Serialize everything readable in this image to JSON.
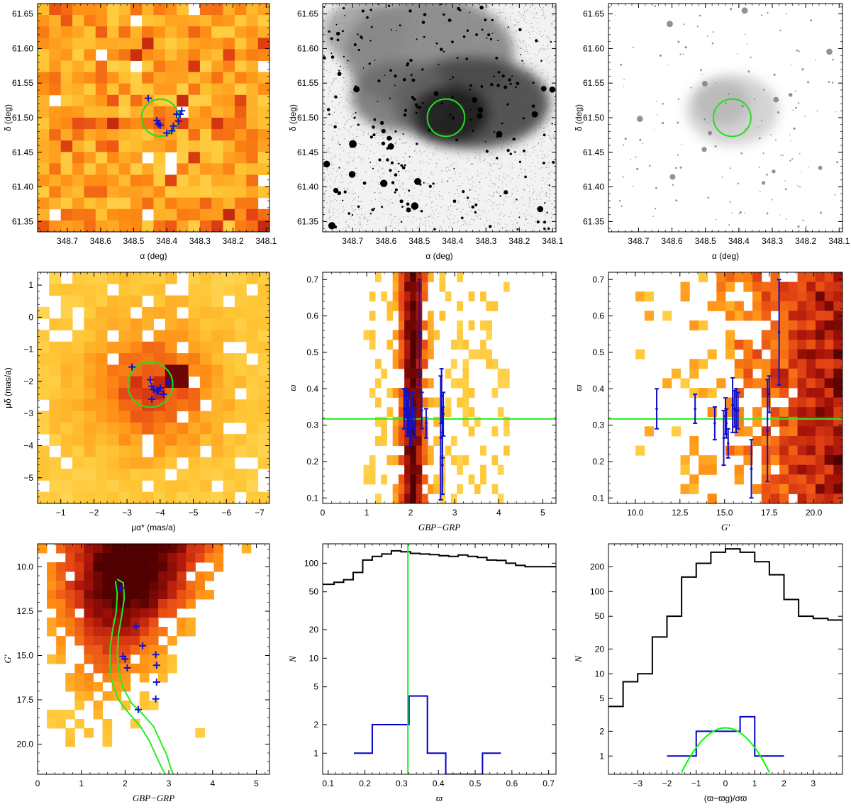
{
  "chart_data": [
    {
      "id": "p1",
      "type": "heatmap",
      "subtitle": "",
      "xlabel": "α (deg)",
      "ylabel": "δ (deg)",
      "xlim": [
        348.79,
        348.09
      ],
      "ylim": [
        61.335,
        61.665
      ],
      "xticks": [
        "348.7",
        "348.6",
        "348.5",
        "348.4",
        "348.3",
        "348.2",
        "348.1"
      ],
      "xtick_values": [
        348.7,
        348.6,
        348.5,
        348.4,
        348.3,
        348.2,
        348.1
      ],
      "yticks": [
        "61.35",
        "61.40",
        "61.45",
        "61.50",
        "61.55",
        "61.60",
        "61.65"
      ],
      "ytick_values": [
        61.35,
        61.4,
        61.45,
        61.5,
        61.55,
        61.6,
        61.65
      ],
      "circle": {
        "x": 348.42,
        "y": 61.5,
        "r_x": 0.056
      },
      "members": [
        [
          348.456,
          61.528
        ],
        [
          348.43,
          61.496
        ],
        [
          348.425,
          61.491
        ],
        [
          348.42,
          61.489
        ],
        [
          348.4,
          61.478
        ],
        [
          348.38,
          61.488
        ],
        [
          348.385,
          61.481
        ],
        [
          348.37,
          61.505
        ],
        [
          348.36,
          61.505
        ],
        [
          348.355,
          61.51
        ],
        [
          348.365,
          61.495
        ]
      ],
      "grid_on": false
    },
    {
      "id": "p2",
      "type": "image",
      "subtitle": "",
      "xlabel": "α (deg)",
      "ylabel": "δ (deg)",
      "xlim": [
        348.79,
        348.09
      ],
      "ylim": [
        61.335,
        61.665
      ],
      "xticks": [
        "348.7",
        "348.6",
        "348.5",
        "348.4",
        "348.3",
        "348.2",
        "348.1"
      ],
      "xtick_values": [
        348.7,
        348.6,
        348.5,
        348.4,
        348.3,
        348.2,
        348.1
      ],
      "yticks": [
        "61.35",
        "61.40",
        "61.45",
        "61.50",
        "61.55",
        "61.60",
        "61.65"
      ],
      "ytick_values": [
        61.35,
        61.4,
        61.45,
        61.5,
        61.55,
        61.6,
        61.65
      ],
      "circle": {
        "x": 348.42,
        "y": 61.5,
        "r_x": 0.056
      }
    },
    {
      "id": "p3",
      "type": "image",
      "subtitle": "",
      "xlabel": "α (deg)",
      "ylabel": "δ (deg)",
      "xlim": [
        348.79,
        348.09
      ],
      "ylim": [
        61.335,
        61.665
      ],
      "xticks": [
        "348.7",
        "348.6",
        "348.5",
        "348.4",
        "348.3",
        "348.2",
        "348.1"
      ],
      "xtick_values": [
        348.7,
        348.6,
        348.5,
        348.4,
        348.3,
        348.2,
        348.1
      ],
      "yticks": [
        "61.35",
        "61.40",
        "61.45",
        "61.50",
        "61.55",
        "61.60",
        "61.65"
      ],
      "ytick_values": [
        61.35,
        61.4,
        61.45,
        61.5,
        61.55,
        61.6,
        61.65
      ],
      "circle": {
        "x": 348.42,
        "y": 61.5,
        "r_x": 0.056
      }
    },
    {
      "id": "p4",
      "type": "heatmap",
      "subtitle": "",
      "xlabel": "μα* (mas/a)",
      "ylabel": "μδ (mas/a)",
      "xlim": [
        -0.3,
        -7.3
      ],
      "ylim": [
        -5.8,
        1.4
      ],
      "xticks": [
        "−1",
        "−2",
        "−3",
        "−4",
        "−5",
        "−6",
        "−7"
      ],
      "xtick_values": [
        -1,
        -2,
        -3,
        -4,
        -5,
        -6,
        -7
      ],
      "yticks": [
        "−5",
        "−4",
        "−3",
        "−2",
        "−1",
        "0",
        "1"
      ],
      "ytick_values": [
        -5,
        -4,
        -3,
        -2,
        -1,
        0,
        1
      ],
      "circle": {
        "x": -3.7,
        "y": -2.1,
        "r_x": 0.68
      },
      "members": [
        [
          -3.15,
          -1.55
        ],
        [
          -3.7,
          -1.95
        ],
        [
          -3.75,
          -2.15
        ],
        [
          -3.8,
          -2.25
        ],
        [
          -3.9,
          -2.3
        ],
        [
          -4.0,
          -2.2
        ],
        [
          -4.1,
          -2.4
        ],
        [
          -3.75,
          -2.55
        ],
        [
          -4.25,
          -2.05
        ],
        [
          -3.95,
          -2.3
        ]
      ],
      "grid_on": false
    },
    {
      "id": "p5",
      "type": "heatmap",
      "subtitle": "",
      "xlabel": "GBP−GRP",
      "ylabel": "ϖ",
      "xlim": [
        0,
        5.3
      ],
      "ylim": [
        0.085,
        0.72
      ],
      "xticks": [
        "0",
        "1",
        "2",
        "3",
        "4",
        "5"
      ],
      "xtick_values": [
        0,
        1,
        2,
        3,
        4,
        5
      ],
      "yticks": [
        "0.1",
        "0.2",
        "0.3",
        "0.4",
        "0.5",
        "0.6",
        "0.7"
      ],
      "ytick_values": [
        0.1,
        0.2,
        0.3,
        0.4,
        0.5,
        0.6,
        0.7
      ],
      "hline": 0.317,
      "members": [
        [
          1.85,
          0.345,
          0.055
        ],
        [
          1.95,
          0.33,
          0.06
        ],
        [
          1.98,
          0.29,
          0.05
        ],
        [
          2.02,
          0.31,
          0.06
        ],
        [
          1.9,
          0.36,
          0.04
        ],
        [
          2.05,
          0.34,
          0.05
        ],
        [
          2.1,
          0.305,
          0.04
        ],
        [
          2.2,
          0.555,
          0.145
        ],
        [
          2.25,
          0.34,
          0.05
        ],
        [
          2.35,
          0.305,
          0.04
        ],
        [
          2.7,
          0.38,
          0.075
        ],
        [
          2.72,
          0.28,
          0.07
        ],
        [
          2.74,
          0.33,
          0.06
        ],
        [
          2.68,
          0.265,
          0.17
        ],
        [
          2.72,
          0.19,
          0.08
        ],
        [
          1.92,
          0.32,
          0.05
        ]
      ],
      "grid_on": false
    },
    {
      "id": "p6",
      "type": "heatmap",
      "subtitle": "",
      "xlabel": "G'",
      "ylabel": "ϖ",
      "xlim": [
        8.5,
        21.6
      ],
      "ylim": [
        0.085,
        0.72
      ],
      "xticks": [
        "10.0",
        "12.5",
        "15.0",
        "17.5",
        "20.0"
      ],
      "xtick_values": [
        10.0,
        12.5,
        15.0,
        17.5,
        20.0
      ],
      "yticks": [
        "0.1",
        "0.2",
        "0.3",
        "0.4",
        "0.5",
        "0.6",
        "0.7"
      ],
      "ytick_values": [
        0.1,
        0.2,
        0.3,
        0.4,
        0.5,
        0.6,
        0.7
      ],
      "hline": 0.317,
      "members": [
        [
          11.2,
          0.345,
          0.055
        ],
        [
          13.35,
          0.345,
          0.04
        ],
        [
          14.45,
          0.305,
          0.045
        ],
        [
          14.95,
          0.265,
          0.075
        ],
        [
          15.05,
          0.325,
          0.05
        ],
        [
          15.1,
          0.305,
          0.04
        ],
        [
          15.2,
          0.25,
          0.04
        ],
        [
          15.55,
          0.345,
          0.05
        ],
        [
          15.65,
          0.34,
          0.06
        ],
        [
          15.75,
          0.34,
          0.05
        ],
        [
          16.5,
          0.18,
          0.08
        ],
        [
          17.4,
          0.285,
          0.14
        ],
        [
          17.5,
          0.385,
          0.05
        ],
        [
          18.05,
          0.555,
          0.145
        ],
        [
          15.45,
          0.355,
          0.075
        ]
      ],
      "grid_on": false
    },
    {
      "id": "p7",
      "type": "heatmap",
      "subtitle": "",
      "xlabel": "GBP−GRP",
      "ylabel": "G'",
      "xlim": [
        0,
        5.3
      ],
      "ylim": [
        21.7,
        8.7
      ],
      "xticks": [
        "0",
        "1",
        "2",
        "3",
        "4",
        "5"
      ],
      "xtick_values": [
        0,
        1,
        2,
        3,
        4,
        5
      ],
      "yticks": [
        "10.0",
        "12.5",
        "15.0",
        "17.5",
        "20.0"
      ],
      "ytick_values": [
        10.0,
        12.5,
        15.0,
        17.5,
        20.0
      ],
      "members": [
        [
          1.9,
          11.2
        ],
        [
          2.25,
          13.35
        ],
        [
          2.4,
          14.45
        ],
        [
          1.95,
          15.05
        ],
        [
          2.0,
          15.2
        ],
        [
          2.05,
          15.7
        ],
        [
          2.7,
          14.95
        ],
        [
          2.72,
          15.55
        ],
        [
          2.72,
          16.5
        ],
        [
          2.7,
          17.45
        ],
        [
          2.3,
          18.05
        ]
      ],
      "isochrone_left": [
        [
          1.78,
          10.8
        ],
        [
          1.82,
          11.5
        ],
        [
          1.8,
          12.5
        ],
        [
          1.72,
          13.5
        ],
        [
          1.66,
          14.5
        ],
        [
          1.65,
          15.5
        ],
        [
          1.7,
          16.5
        ],
        [
          1.85,
          17.5
        ],
        [
          2.1,
          18.3
        ],
        [
          2.35,
          19.0
        ],
        [
          2.55,
          19.8
        ],
        [
          2.7,
          20.6
        ],
        [
          2.85,
          21.4
        ],
        [
          2.92,
          21.7
        ]
      ],
      "isochrone_right": [
        [
          1.82,
          10.7
        ],
        [
          1.96,
          10.9
        ],
        [
          1.98,
          11.8
        ],
        [
          1.92,
          12.8
        ],
        [
          1.85,
          13.8
        ],
        [
          1.82,
          14.8
        ],
        [
          1.85,
          15.8
        ],
        [
          1.95,
          16.8
        ],
        [
          2.15,
          17.7
        ],
        [
          2.4,
          18.3
        ],
        [
          2.65,
          19.0
        ],
        [
          2.8,
          19.8
        ],
        [
          2.95,
          20.6
        ],
        [
          3.05,
          21.4
        ],
        [
          3.1,
          21.7
        ]
      ],
      "grid_on": false
    },
    {
      "id": "p8",
      "type": "bar",
      "subtitle": "",
      "xlabel": "ϖ",
      "ylabel": "N",
      "yscale": "log",
      "xlim": [
        0.085,
        0.72
      ],
      "ylim": [
        0.6,
        160
      ],
      "xticks": [
        "0.1",
        "0.2",
        "0.3",
        "0.4",
        "0.5",
        "0.6",
        "0.7"
      ],
      "xtick_values": [
        0.1,
        0.2,
        0.3,
        0.4,
        0.5,
        0.6,
        0.7
      ],
      "yticks": [
        "1",
        "2",
        "5",
        "10",
        "20",
        "50",
        "100"
      ],
      "ytick_values": [
        1,
        2,
        5,
        10,
        20,
        50,
        100
      ],
      "vline": 0.317,
      "bin_edges": [
        0.085,
        0.116,
        0.142,
        0.168,
        0.194,
        0.22,
        0.246,
        0.272,
        0.298,
        0.324,
        0.35,
        0.376,
        0.402,
        0.428,
        0.454,
        0.48,
        0.506,
        0.532,
        0.558,
        0.584,
        0.61,
        0.636,
        0.662,
        0.72
      ],
      "series": [
        {
          "color": "#000000",
          "values": [
            60,
            63,
            67,
            80,
            108,
            118,
            125,
            135,
            132,
            127,
            125,
            123,
            120,
            118,
            122,
            118,
            115,
            108,
            107,
            100,
            95,
            92,
            92
          ]
        },
        {
          "color": "#0000cc",
          "edges": [
            0.17,
            0.22,
            0.27,
            0.32,
            0.37,
            0.42,
            0.47,
            0.52,
            0.57
          ],
          "values": [
            1,
            2,
            2,
            4,
            1,
            0,
            0,
            1
          ]
        }
      ],
      "grid_on": false
    },
    {
      "id": "p9",
      "type": "bar",
      "subtitle": "",
      "xlabel": "(ϖ−ϖg)/σϖ",
      "ylabel": "N",
      "yscale": "log",
      "xlim": [
        -4,
        4
      ],
      "ylim": [
        0.6,
        380
      ],
      "xticks": [
        "−3",
        "−2",
        "−1",
        "0",
        "1",
        "2",
        "3"
      ],
      "xtick_values": [
        -3,
        -2,
        -1,
        0,
        1,
        2,
        3
      ],
      "yticks": [
        "1",
        "2",
        "5",
        "10",
        "20",
        "50",
        "100",
        "200"
      ],
      "ytick_values": [
        1,
        2,
        5,
        10,
        20,
        50,
        100,
        200
      ],
      "bin_edges": [
        -4,
        -3.5,
        -3.0,
        -2.5,
        -2.0,
        -1.5,
        -1.0,
        -0.5,
        0.0,
        0.5,
        1.0,
        1.5,
        2.0,
        2.5,
        3.0,
        3.5,
        4.0
      ],
      "series": [
        {
          "color": "#000000",
          "values": [
            4,
            8,
            10,
            28,
            50,
            150,
            220,
            300,
            330,
            300,
            230,
            160,
            80,
            50,
            47,
            45
          ]
        },
        {
          "color": "#0000cc",
          "edges": [
            -2,
            -1,
            0,
            0.5,
            1,
            1.5,
            2
          ],
          "values": [
            1,
            2,
            2,
            3,
            1,
            1
          ]
        }
      ],
      "gaussian": {
        "amplitude": 2.2,
        "mean": 0,
        "sigma": 0.95,
        "color": "#00ff00"
      },
      "grid_on": false
    }
  ]
}
